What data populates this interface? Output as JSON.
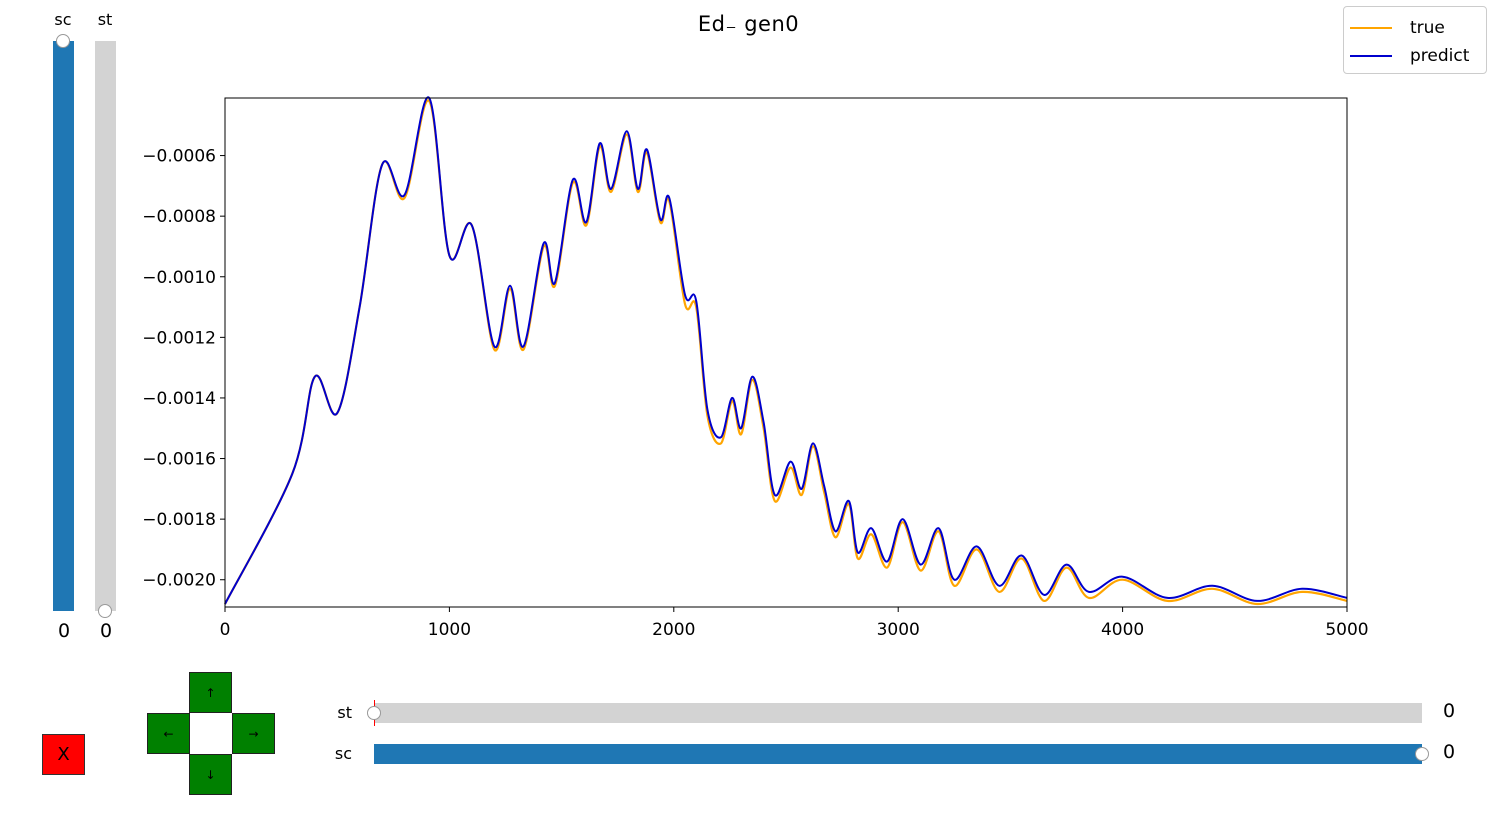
{
  "title": "Ed₋ gen0",
  "legend": [
    {
      "label": "true",
      "color": "#ffa500"
    },
    {
      "label": "predict",
      "color": "#0000cd"
    }
  ],
  "sliders": {
    "vertical": [
      {
        "label": "sc",
        "value": "0",
        "fill": "#1f77b4",
        "fill_fraction": 1.0
      },
      {
        "label": "st",
        "value": "0",
        "fill": "#d3d3d3",
        "fill_fraction": 0.0
      }
    ],
    "horizontal": [
      {
        "label": "st",
        "value": "0",
        "fill": "#d3d3d3",
        "fill_fraction": 0.0
      },
      {
        "label": "sc",
        "value": "0",
        "fill": "#1f77b4",
        "fill_fraction": 1.0
      }
    ]
  },
  "controls": {
    "close_label": "X",
    "close_color": "#ff0000",
    "pad_color": "#008000",
    "up": "↑",
    "down": "↓",
    "left": "←",
    "right": "→"
  },
  "chart_data": {
    "type": "line",
    "title": "Ed₋ gen0",
    "xlim": [
      0,
      5000
    ],
    "ylim": [
      -0.00209,
      -0.00041
    ],
    "xticks": [
      0,
      1000,
      2000,
      3000,
      4000,
      5000
    ],
    "xtick_labels": [
      "0",
      "1000",
      "2000",
      "3000",
      "4000",
      "5000"
    ],
    "yticks": [
      -0.002,
      -0.0018,
      -0.0016,
      -0.0014,
      -0.0012,
      -0.001,
      -0.0008,
      -0.0006
    ],
    "ytick_labels": [
      "−0.0020",
      "−0.0018",
      "−0.0016",
      "−0.0014",
      "−0.0012",
      "−0.0010",
      "−0.0008",
      "−0.0006"
    ],
    "grid": false,
    "legend_position": "top-right",
    "series": [
      {
        "name": "true",
        "color": "#ffa500",
        "x": [
          0,
          300,
          400,
          500,
          600,
          700,
          800,
          910,
          1000,
          1100,
          1200,
          1270,
          1330,
          1420,
          1470,
          1550,
          1610,
          1670,
          1720,
          1790,
          1840,
          1880,
          1940,
          1980,
          2050,
          2100,
          2150,
          2210,
          2260,
          2300,
          2350,
          2400,
          2450,
          2520,
          2570,
          2620,
          2670,
          2720,
          2780,
          2820,
          2880,
          2950,
          3020,
          3100,
          3180,
          3250,
          3350,
          3450,
          3550,
          3650,
          3750,
          3850,
          4000,
          4200,
          4400,
          4600,
          4800,
          5000
        ],
        "y": [
          -0.00208,
          -0.00165,
          -0.00133,
          -0.00145,
          -0.0011,
          -0.00063,
          -0.00074,
          -0.00042,
          -0.00093,
          -0.00083,
          -0.00124,
          -0.00104,
          -0.00124,
          -0.0009,
          -0.00103,
          -0.00069,
          -0.00083,
          -0.00057,
          -0.00072,
          -0.00053,
          -0.00072,
          -0.00059,
          -0.00082,
          -0.00075,
          -0.00109,
          -0.0011,
          -0.00146,
          -0.00155,
          -0.00141,
          -0.00152,
          -0.00134,
          -0.0015,
          -0.00174,
          -0.00163,
          -0.00172,
          -0.00156,
          -0.00171,
          -0.00186,
          -0.00175,
          -0.00193,
          -0.00185,
          -0.00196,
          -0.00181,
          -0.00197,
          -0.00184,
          -0.00202,
          -0.0019,
          -0.00204,
          -0.00193,
          -0.00207,
          -0.00196,
          -0.00206,
          -0.002,
          -0.00207,
          -0.00203,
          -0.00208,
          -0.00204,
          -0.00207
        ]
      },
      {
        "name": "predict",
        "color": "#0000cd",
        "x": [
          0,
          300,
          400,
          500,
          600,
          700,
          800,
          910,
          1000,
          1100,
          1200,
          1270,
          1330,
          1420,
          1470,
          1550,
          1610,
          1670,
          1720,
          1790,
          1840,
          1880,
          1940,
          1980,
          2050,
          2100,
          2150,
          2210,
          2260,
          2300,
          2350,
          2400,
          2450,
          2520,
          2570,
          2620,
          2670,
          2720,
          2780,
          2820,
          2880,
          2950,
          3020,
          3100,
          3180,
          3250,
          3350,
          3450,
          3550,
          3650,
          3750,
          3850,
          4000,
          4200,
          4400,
          4600,
          4800,
          5000
        ],
        "y": [
          -0.00208,
          -0.00165,
          -0.00133,
          -0.00145,
          -0.0011,
          -0.00063,
          -0.00073,
          -0.00041,
          -0.00093,
          -0.00083,
          -0.00123,
          -0.00103,
          -0.00123,
          -0.00089,
          -0.00102,
          -0.00068,
          -0.00082,
          -0.00056,
          -0.00071,
          -0.00052,
          -0.00071,
          -0.00058,
          -0.00081,
          -0.00074,
          -0.00106,
          -0.00108,
          -0.00144,
          -0.00153,
          -0.0014,
          -0.0015,
          -0.00133,
          -0.00148,
          -0.00172,
          -0.00161,
          -0.0017,
          -0.00155,
          -0.00169,
          -0.00184,
          -0.00174,
          -0.00191,
          -0.00183,
          -0.00194,
          -0.0018,
          -0.00195,
          -0.00183,
          -0.002,
          -0.00189,
          -0.00202,
          -0.00192,
          -0.00205,
          -0.00195,
          -0.00204,
          -0.00199,
          -0.00206,
          -0.00202,
          -0.00207,
          -0.00203,
          -0.00206
        ]
      }
    ]
  }
}
